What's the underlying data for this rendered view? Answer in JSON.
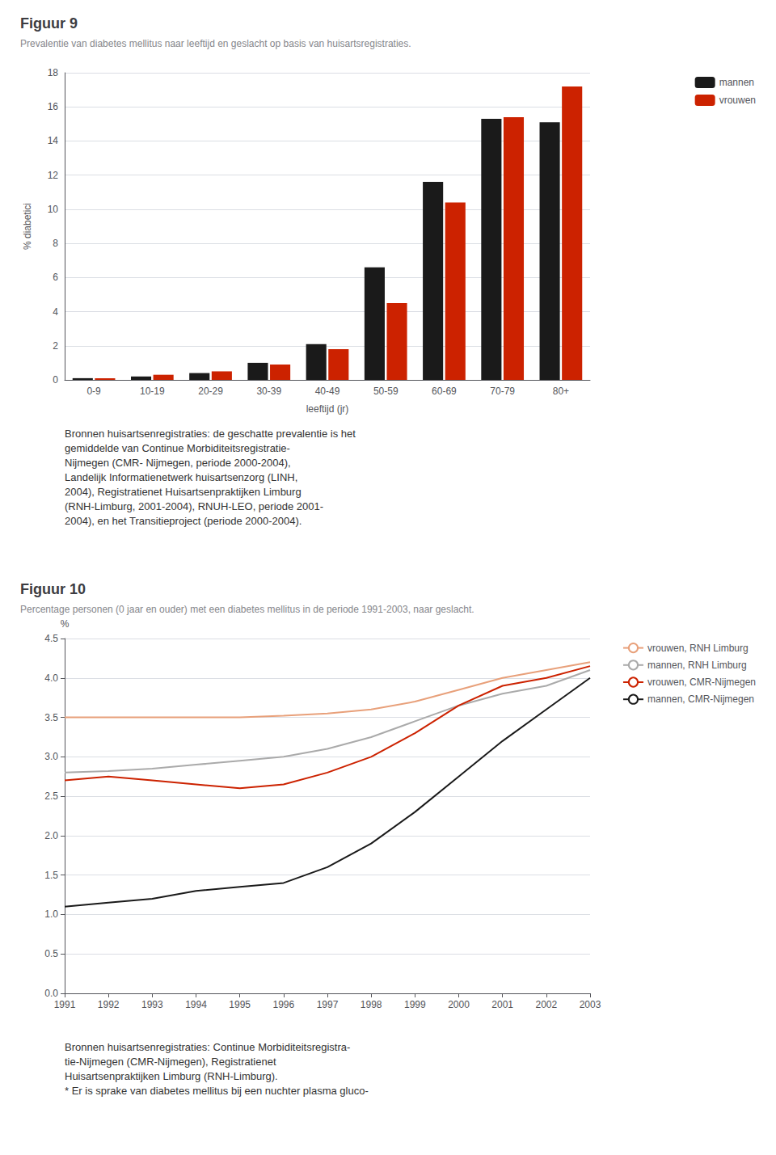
{
  "chart_data": [
    {
      "type": "bar",
      "title": "Figuur 9",
      "subtitle": "Prevalentie van diabetes mellitus naar leeftijd en geslacht op basis van huisartsregistraties.",
      "categories": [
        "0-9",
        "10-19",
        "20-29",
        "30-39",
        "40-49",
        "50-59",
        "60-69",
        "70-79",
        "80+"
      ],
      "series": [
        {
          "name": "mannen",
          "color": "#1a1a1a",
          "values": [
            0.1,
            0.2,
            0.4,
            1.0,
            2.1,
            6.6,
            11.6,
            15.3,
            15.1
          ]
        },
        {
          "name": "vrouwen",
          "color": "#cc2200",
          "values": [
            0.1,
            0.3,
            0.5,
            0.9,
            1.8,
            4.5,
            10.4,
            15.4,
            17.2
          ]
        }
      ],
      "xlabel": "leeftijd (jr)",
      "ylabel": "% diabetici",
      "ylim": [
        0,
        18
      ],
      "yticks": [
        0,
        2,
        4,
        6,
        8,
        10,
        12,
        14,
        16,
        18
      ],
      "grid": true,
      "legend": "upper right",
      "annotations": [
        "Bronnen huisartsenregistraties: de geschatte prevalentie is het",
        "gemiddelde van Continue Morbiditeitsregistratie-",
        "Nijmegen (CMR- Nijmegen, periode 2000-2004),",
        "Landelijk Informatienetwerk huisartsenzorg (LINH,",
        "2004), Registratienet Huisartsenpraktijken Limburg",
        "(RNH-Limburg, 2001-2004), RNUH-LEO, periode 2001-",
        "2004), en het Transitieproject (periode 2000-2004)."
      ]
    },
    {
      "type": "line",
      "title": "Figuur 10",
      "subtitle": "Percentage personen (0 jaar en ouder) met een diabetes mellitus in de periode 1991-2003, naar geslacht.",
      "x": [
        1991,
        1992,
        1993,
        1994,
        1995,
        1996,
        1997,
        1998,
        1999,
        2000,
        2001,
        2002,
        2003
      ],
      "series": [
        {
          "name": "vrouwen, RNH Limburg",
          "color": "#e8a07a",
          "values": [
            3.5,
            3.5,
            3.5,
            3.5,
            3.5,
            3.52,
            3.55,
            3.6,
            3.7,
            3.85,
            4.0,
            4.1,
            4.2
          ]
        },
        {
          "name": "mannen, RNH Limburg",
          "color": "#aaaaaa",
          "values": [
            2.8,
            2.82,
            2.85,
            2.9,
            2.95,
            3.0,
            3.1,
            3.25,
            3.45,
            3.65,
            3.8,
            3.9,
            4.1
          ]
        },
        {
          "name": "vrouwen, CMR-Nijmegen",
          "color": "#cc2200",
          "values": [
            2.7,
            2.75,
            2.7,
            2.65,
            2.6,
            2.65,
            2.8,
            3.0,
            3.3,
            3.65,
            3.9,
            4.0,
            4.15
          ]
        },
        {
          "name": "mannen, CMR-Nijmegen",
          "color": "#1a1a1a",
          "values": [
            1.1,
            1.15,
            1.2,
            1.3,
            1.35,
            1.4,
            1.6,
            1.9,
            2.3,
            2.75,
            3.2,
            3.6,
            4.0
          ]
        }
      ],
      "ylabel": "%",
      "xlim": [
        1991,
        2003
      ],
      "xticks": [
        1991,
        1992,
        1993,
        1994,
        1995,
        1996,
        1997,
        1998,
        1999,
        2000,
        2001,
        2002,
        2003
      ],
      "ylim": [
        0,
        4.5
      ],
      "yticks": [
        {
          "value": 0,
          "label": "0.0"
        },
        0.5,
        {
          "value": 1,
          "label": "1.0"
        },
        1.5,
        {
          "value": 2,
          "label": "2.0"
        },
        2.5,
        {
          "value": 3,
          "label": "3.0"
        },
        3.5,
        {
          "value": 4,
          "label": "4.0"
        },
        4.5
      ],
      "grid": true,
      "legend": "upper right",
      "annotations": [
        "Bronnen huisartsenregistraties: Continue Morbiditeitsregistra-",
        "tie-Nijmegen (CMR-Nijmegen), Registratienet",
        "Huisartsenpraktijken Limburg (RNH-Limburg).",
        "* Er is sprake van diabetes mellitus bij een nuchter plasma gluco-"
      ]
    }
  ]
}
